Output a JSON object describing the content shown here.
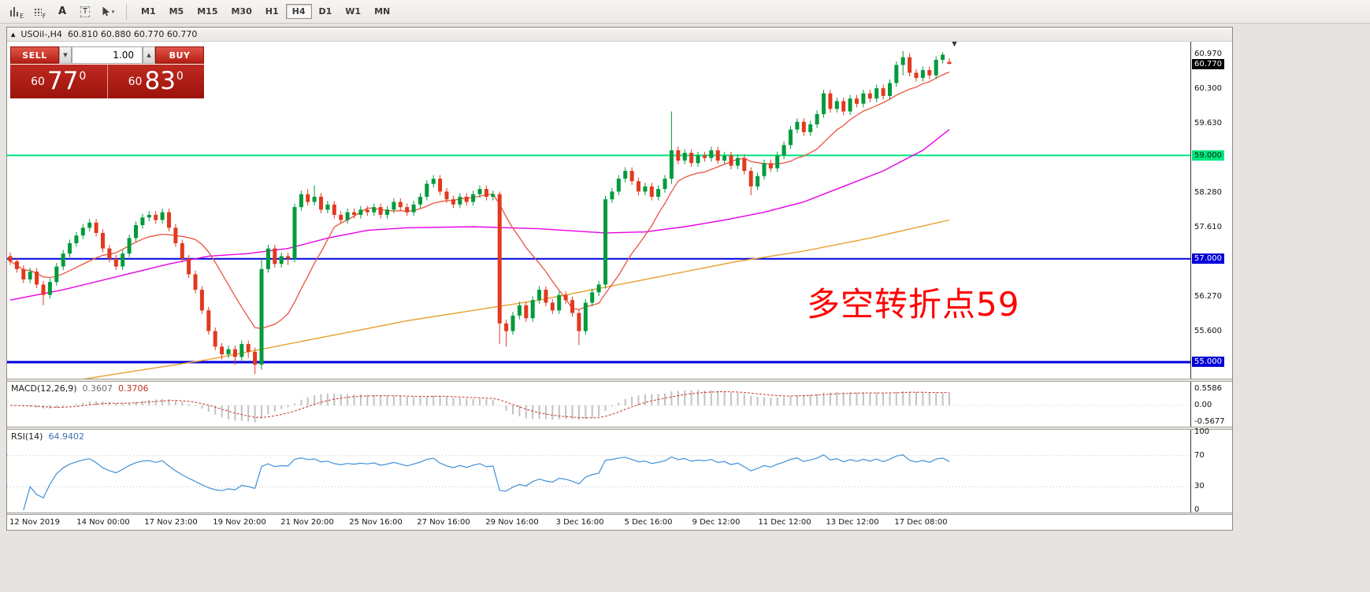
{
  "toolbar": {
    "tools": {
      "chart_sub": "E",
      "grid_sub": "F",
      "label_tool": "A",
      "text_tool": "T",
      "dropdown_glyph": "▾"
    },
    "timeframes": [
      "M1",
      "M5",
      "M15",
      "M30",
      "H1",
      "H4",
      "D1",
      "W1",
      "MN"
    ],
    "active_timeframe": "H4"
  },
  "chart_window": {
    "collapse_glyph": "▲",
    "symbol": "USOil-,H4",
    "ohlc_text": "60.810 60.880 60.770 60.770",
    "shift_marker_glyph": "▼",
    "trade_panel": {
      "sell_label": "SELL",
      "buy_label": "BUY",
      "volume": "1.00",
      "vol_down_glyph": "▼",
      "vol_up_glyph": "▲",
      "sell_price": {
        "prefix": "60",
        "big": "77",
        "sup": "0"
      },
      "buy_price": {
        "prefix": "60",
        "big": "83",
        "sup": "0"
      }
    },
    "hlines": [
      {
        "price": 59.0,
        "color": "#00E57E",
        "width": 2
      },
      {
        "price": 57.0,
        "color": "#0000E0",
        "width": 2
      },
      {
        "price": 55.0,
        "color": "#0000E0",
        "width": 3
      }
    ],
    "annotation": {
      "text": "多空转折点59",
      "color": "#FF0000"
    }
  },
  "price_scale": {
    "labels": [
      {
        "text": "60.970"
      },
      {
        "text": "60.770",
        "highlight": "current"
      },
      {
        "text": "60.300"
      },
      {
        "text": "59.630"
      },
      {
        "text": "59.000",
        "highlight": "green"
      },
      {
        "text": "58.280"
      },
      {
        "text": "57.610"
      },
      {
        "text": "57.000",
        "highlight": "blue"
      },
      {
        "text": "56.270"
      },
      {
        "text": "55.600"
      },
      {
        "text": "55.000",
        "highlight": "blue"
      }
    ]
  },
  "chart_data": {
    "type": "candlestick",
    "title": "USOil- H4",
    "y_axis": {
      "top_price": 61.2,
      "bottom_price": 54.68,
      "visible_ticks": [
        "60.970",
        "60.300",
        "59.630",
        "58.280",
        "57.610",
        "56.270",
        "55.600"
      ]
    },
    "up_color": "#009B3C",
    "down_color": "#E2391F",
    "candles": [
      [
        57.05,
        57.12,
        56.88,
        56.95
      ],
      [
        56.95,
        57.02,
        56.73,
        56.8
      ],
      [
        56.8,
        56.87,
        56.53,
        56.6
      ],
      [
        56.6,
        56.82,
        56.53,
        56.75
      ],
      [
        56.75,
        56.82,
        56.43,
        56.5
      ],
      [
        56.5,
        56.57,
        56.1,
        56.3
      ],
      [
        56.3,
        56.62,
        56.23,
        56.55
      ],
      [
        56.55,
        56.92,
        56.48,
        56.85
      ],
      [
        56.85,
        57.17,
        56.78,
        57.1
      ],
      [
        57.1,
        57.37,
        57.03,
        57.3
      ],
      [
        57.3,
        57.52,
        57.23,
        57.45
      ],
      [
        57.45,
        57.67,
        57.38,
        57.6
      ],
      [
        57.6,
        57.77,
        57.53,
        57.7
      ],
      [
        57.7,
        57.77,
        57.43,
        57.5
      ],
      [
        57.5,
        57.57,
        57.13,
        57.2
      ],
      [
        57.2,
        57.27,
        56.93,
        57.0
      ],
      [
        57.0,
        57.07,
        56.78,
        56.85
      ],
      [
        56.85,
        57.17,
        56.78,
        57.1
      ],
      [
        57.1,
        57.47,
        57.03,
        57.4
      ],
      [
        57.4,
        57.72,
        57.33,
        57.65
      ],
      [
        57.65,
        57.87,
        57.58,
        57.8
      ],
      [
        57.8,
        57.92,
        57.73,
        57.85
      ],
      [
        57.85,
        57.92,
        57.68,
        57.75
      ],
      [
        57.75,
        57.97,
        57.68,
        57.9
      ],
      [
        57.9,
        57.97,
        57.53,
        57.6
      ],
      [
        57.6,
        57.67,
        57.23,
        57.3
      ],
      [
        57.3,
        57.37,
        56.93,
        57.0
      ],
      [
        57.0,
        57.07,
        56.63,
        56.7
      ],
      [
        56.7,
        56.77,
        56.33,
        56.4
      ],
      [
        56.4,
        56.47,
        55.93,
        56.0
      ],
      [
        56.0,
        56.07,
        55.53,
        55.6
      ],
      [
        55.6,
        55.67,
        55.23,
        55.3
      ],
      [
        55.3,
        55.37,
        55.05,
        55.15
      ],
      [
        55.15,
        55.32,
        55.08,
        55.25
      ],
      [
        55.25,
        55.32,
        54.95,
        55.1
      ],
      [
        55.1,
        55.42,
        55.03,
        55.35
      ],
      [
        55.35,
        55.42,
        55.08,
        55.2
      ],
      [
        55.2,
        55.28,
        54.77,
        54.95
      ],
      [
        54.95,
        57.0,
        54.85,
        56.8
      ],
      [
        56.8,
        57.27,
        56.73,
        57.2
      ],
      [
        57.2,
        57.27,
        56.83,
        56.9
      ],
      [
        56.9,
        57.12,
        56.83,
        57.05
      ],
      [
        57.05,
        57.12,
        56.88,
        57.0
      ],
      [
        57.0,
        58.07,
        56.93,
        58.0
      ],
      [
        58.0,
        58.32,
        57.93,
        58.25
      ],
      [
        58.25,
        58.35,
        58.03,
        58.1
      ],
      [
        58.1,
        58.42,
        58.03,
        58.2
      ],
      [
        58.2,
        58.27,
        57.88,
        57.95
      ],
      [
        57.95,
        58.12,
        57.88,
        58.05
      ],
      [
        58.05,
        58.12,
        57.78,
        57.85
      ],
      [
        57.85,
        57.92,
        57.68,
        57.75
      ],
      [
        57.75,
        57.97,
        57.68,
        57.9
      ],
      [
        57.9,
        57.97,
        57.78,
        57.85
      ],
      [
        57.85,
        58.02,
        57.78,
        57.95
      ],
      [
        57.95,
        58.02,
        57.83,
        57.9
      ],
      [
        57.9,
        58.07,
        57.83,
        58.0
      ],
      [
        58.0,
        58.07,
        57.78,
        57.85
      ],
      [
        57.85,
        58.02,
        57.78,
        57.95
      ],
      [
        57.95,
        58.17,
        57.88,
        58.1
      ],
      [
        58.1,
        58.17,
        57.93,
        58.0
      ],
      [
        58.0,
        58.07,
        57.83,
        57.9
      ],
      [
        57.9,
        58.12,
        57.83,
        58.05
      ],
      [
        58.05,
        58.27,
        57.98,
        58.2
      ],
      [
        58.2,
        58.52,
        58.13,
        58.45
      ],
      [
        58.45,
        58.62,
        58.38,
        58.55
      ],
      [
        58.55,
        58.62,
        58.23,
        58.3
      ],
      [
        58.3,
        58.37,
        58.08,
        58.15
      ],
      [
        58.15,
        58.22,
        57.98,
        58.05
      ],
      [
        58.05,
        58.27,
        57.98,
        58.2
      ],
      [
        58.2,
        58.27,
        58.03,
        58.1
      ],
      [
        58.1,
        58.32,
        58.03,
        58.25
      ],
      [
        58.25,
        58.42,
        58.18,
        58.35
      ],
      [
        58.35,
        58.42,
        58.13,
        58.2
      ],
      [
        58.2,
        58.32,
        58.13,
        58.25
      ],
      [
        58.25,
        58.3,
        55.35,
        55.75
      ],
      [
        55.75,
        55.82,
        55.3,
        55.6
      ],
      [
        55.6,
        55.97,
        55.53,
        55.9
      ],
      [
        55.9,
        56.17,
        55.83,
        56.1
      ],
      [
        56.1,
        56.17,
        55.78,
        55.85
      ],
      [
        55.85,
        56.27,
        55.78,
        56.2
      ],
      [
        56.2,
        56.47,
        56.13,
        56.4
      ],
      [
        56.4,
        56.47,
        56.08,
        56.15
      ],
      [
        56.15,
        56.22,
        55.93,
        56.0
      ],
      [
        56.0,
        56.37,
        55.93,
        56.3
      ],
      [
        56.3,
        56.37,
        56.13,
        56.2
      ],
      [
        56.2,
        56.27,
        55.88,
        55.95
      ],
      [
        55.95,
        56.02,
        55.33,
        55.6
      ],
      [
        55.6,
        56.22,
        55.53,
        56.15
      ],
      [
        56.15,
        56.42,
        56.08,
        56.35
      ],
      [
        56.35,
        56.57,
        56.28,
        56.5
      ],
      [
        56.5,
        58.22,
        56.42,
        58.15
      ],
      [
        58.15,
        58.37,
        58.08,
        58.3
      ],
      [
        58.3,
        58.62,
        58.23,
        58.55
      ],
      [
        58.55,
        58.77,
        58.48,
        58.7
      ],
      [
        58.7,
        58.77,
        58.43,
        58.5
      ],
      [
        58.5,
        58.57,
        58.23,
        58.3
      ],
      [
        58.3,
        58.47,
        58.23,
        58.4
      ],
      [
        58.4,
        58.47,
        58.13,
        58.2
      ],
      [
        58.2,
        58.42,
        58.13,
        58.35
      ],
      [
        58.35,
        58.62,
        58.28,
        58.55
      ],
      [
        58.55,
        59.85,
        58.45,
        59.1
      ],
      [
        59.1,
        59.17,
        58.83,
        58.9
      ],
      [
        58.9,
        59.12,
        58.83,
        59.05
      ],
      [
        59.05,
        59.12,
        58.78,
        58.85
      ],
      [
        58.85,
        59.07,
        58.78,
        59.0
      ],
      [
        59.0,
        59.07,
        58.88,
        58.95
      ],
      [
        58.95,
        59.17,
        58.88,
        59.1
      ],
      [
        59.1,
        59.17,
        58.83,
        58.9
      ],
      [
        58.9,
        59.07,
        58.83,
        59.0
      ],
      [
        59.0,
        59.07,
        58.73,
        58.8
      ],
      [
        58.8,
        59.02,
        58.73,
        58.95
      ],
      [
        58.95,
        59.02,
        58.63,
        58.7
      ],
      [
        58.7,
        58.77,
        58.23,
        58.4
      ],
      [
        58.4,
        58.67,
        58.33,
        58.6
      ],
      [
        58.6,
        58.92,
        58.53,
        58.85
      ],
      [
        58.85,
        58.92,
        58.68,
        58.75
      ],
      [
        58.75,
        59.07,
        58.68,
        59.0
      ],
      [
        59.0,
        59.27,
        58.93,
        59.2
      ],
      [
        59.2,
        59.57,
        59.13,
        59.5
      ],
      [
        59.5,
        59.72,
        59.43,
        59.65
      ],
      [
        59.65,
        59.72,
        59.38,
        59.45
      ],
      [
        59.45,
        59.67,
        59.38,
        59.6
      ],
      [
        59.6,
        59.87,
        59.53,
        59.8
      ],
      [
        59.8,
        60.27,
        59.73,
        60.2
      ],
      [
        60.2,
        60.27,
        59.83,
        59.9
      ],
      [
        59.9,
        60.12,
        59.83,
        60.05
      ],
      [
        60.05,
        60.12,
        59.78,
        59.85
      ],
      [
        59.85,
        60.17,
        59.78,
        60.1
      ],
      [
        60.1,
        60.17,
        59.93,
        60.0
      ],
      [
        60.0,
        60.27,
        59.93,
        60.2
      ],
      [
        60.2,
        60.27,
        60.03,
        60.1
      ],
      [
        60.1,
        60.37,
        60.03,
        60.3
      ],
      [
        60.3,
        60.37,
        60.08,
        60.15
      ],
      [
        60.15,
        60.47,
        60.08,
        60.4
      ],
      [
        60.4,
        60.82,
        60.33,
        60.75
      ],
      [
        60.75,
        61.02,
        60.55,
        60.9
      ],
      [
        60.9,
        60.97,
        60.53,
        60.6
      ],
      [
        60.6,
        60.67,
        60.43,
        60.5
      ],
      [
        60.5,
        60.72,
        60.43,
        60.65
      ],
      [
        60.65,
        60.72,
        60.48,
        60.55
      ],
      [
        60.55,
        60.92,
        60.48,
        60.85
      ],
      [
        60.85,
        61.0,
        60.78,
        60.95
      ],
      [
        60.81,
        60.88,
        60.77,
        60.77
      ]
    ],
    "ma_fast": {
      "period": 12,
      "color": "#E8553E"
    },
    "ma_medium": {
      "color": "#E800E8",
      "points": [
        [
          0,
          56.2
        ],
        [
          8,
          56.4
        ],
        [
          16,
          56.65
        ],
        [
          24,
          56.9
        ],
        [
          30,
          57.05
        ],
        [
          36,
          57.1
        ],
        [
          42,
          57.2
        ],
        [
          48,
          57.4
        ],
        [
          54,
          57.55
        ],
        [
          60,
          57.6
        ],
        [
          70,
          57.62
        ],
        [
          80,
          57.58
        ],
        [
          90,
          57.5
        ],
        [
          96,
          57.52
        ],
        [
          102,
          57.62
        ],
        [
          108,
          57.75
        ],
        [
          114,
          57.9
        ],
        [
          120,
          58.1
        ],
        [
          126,
          58.4
        ],
        [
          132,
          58.7
        ],
        [
          138,
          59.1
        ],
        [
          142,
          59.5
        ]
      ]
    },
    "ma_slow": {
      "color": "#E8A030",
      "points": [
        [
          0,
          54.45
        ],
        [
          10,
          54.65
        ],
        [
          20,
          54.85
        ],
        [
          30,
          55.05
        ],
        [
          40,
          55.3
        ],
        [
          50,
          55.55
        ],
        [
          60,
          55.8
        ],
        [
          70,
          56.0
        ],
        [
          80,
          56.2
        ],
        [
          90,
          56.45
        ],
        [
          100,
          56.7
        ],
        [
          110,
          56.95
        ],
        [
          120,
          57.15
        ],
        [
          130,
          57.4
        ],
        [
          142,
          57.75
        ]
      ]
    }
  },
  "macd_panel": {
    "name": "MACD(12,26,9)",
    "value_main": "0.3607",
    "value_signal": "0.3706",
    "scale": [
      "0.5586",
      "0.00",
      "-0.5677"
    ],
    "histogram_color": "#C2C2C2",
    "signal_color": "#C8372D"
  },
  "rsi_panel": {
    "name": "RSI(14)",
    "value": "64.9402",
    "scale": [
      "100",
      "70",
      "30",
      "0"
    ],
    "levels": [
      70,
      30
    ],
    "line_color": "#4090D8"
  },
  "time_axis": {
    "labels": [
      "12 Nov 2019",
      "14 Nov 00:00",
      "17 Nov 23:00",
      "19 Nov 20:00",
      "21 Nov 20:00",
      "25 Nov 16:00",
      "27 Nov 16:00",
      "29 Nov 16:00",
      "3 Dec 16:00",
      "5 Dec 16:00",
      "9 Dec 12:00",
      "11 Dec 12:00",
      "13 Dec 12:00",
      "17 Dec 08:00"
    ]
  }
}
